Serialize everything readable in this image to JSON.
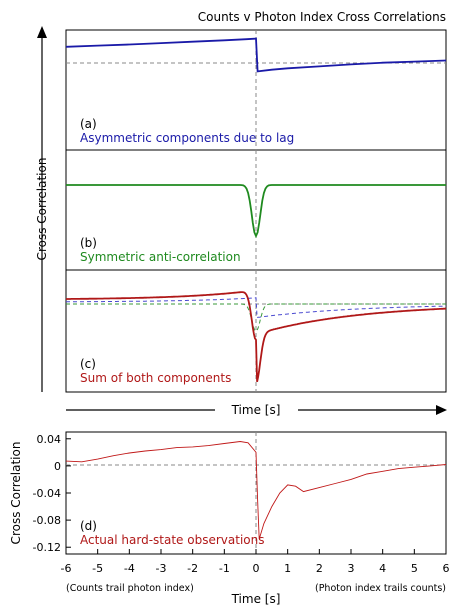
{
  "figure": {
    "title": "Counts v Photon Index Cross Correlations",
    "y_axis_label_top": "Cross Correlation",
    "time_arrow_label": "Time [s]"
  },
  "colors": {
    "blue": "#1a1aa8",
    "green": "#1f8a1f",
    "red": "#b01818",
    "axis": "#000000",
    "dash": "#888888"
  },
  "panels": [
    {
      "label": "(a)",
      "caption": "Asymmetric components due to lag",
      "color": "blue"
    },
    {
      "label": "(b)",
      "caption": "Symmetric anti-correlation",
      "color": "green"
    },
    {
      "label": "(c)",
      "caption": "Sum of both components",
      "color": "red"
    },
    {
      "label": "(d)",
      "caption": "Actual hard-state observations",
      "color": "red"
    }
  ],
  "bottom_axis": {
    "xlabel": "Time [s]",
    "ylabel": "Cross Correlation",
    "left_note": "(Counts trail photon index)",
    "right_note": "(Photon index trails counts)",
    "xticks": [
      -6,
      -5,
      -4,
      -3,
      -2,
      -1,
      0,
      1,
      2,
      3,
      4,
      5,
      6
    ],
    "yticks": [
      "0.04",
      "0",
      "-0.04",
      "-0.08",
      "-0.12"
    ]
  },
  "chart_data": [
    {
      "type": "line",
      "title": "(a) Asymmetric components due to lag",
      "x": [
        -6,
        -5,
        -4,
        -3,
        -2,
        -1,
        -0.3,
        0,
        0.05,
        0.5,
        1,
        2,
        3,
        4,
        5,
        6
      ],
      "series": [
        {
          "values": [
            0.58,
            0.62,
            0.66,
            0.71,
            0.76,
            0.81,
            0.85,
            0.87,
            -0.3,
            -0.24,
            -0.19,
            -0.12,
            -0.05,
            0.01,
            0.05,
            0.09
          ]
        }
      ]
    },
    {
      "type": "line",
      "title": "(b) Symmetric anti-correlation",
      "x": [
        -6,
        -1,
        -0.5,
        -0.3,
        -0.15,
        0,
        0.15,
        0.3,
        0.5,
        1,
        6
      ],
      "series": [
        {
          "values": [
            0,
            0,
            -0.01,
            -0.1,
            -0.5,
            -1,
            -0.5,
            -0.1,
            -0.01,
            0,
            0
          ]
        }
      ]
    },
    {
      "type": "line",
      "title": "(c) Sum of both components",
      "x": [
        -6,
        -4,
        -2,
        -1,
        -0.5,
        -0.2,
        0,
        0.2,
        0.5,
        1,
        2,
        3,
        4,
        5,
        6
      ],
      "series": [
        {
          "values": [
            0.05,
            0.1,
            0.2,
            0.25,
            0.2,
            -0.1,
            -1.25,
            -0.8,
            -0.6,
            -0.5,
            -0.4,
            -0.3,
            -0.2,
            -0.15,
            -0.1
          ]
        }
      ]
    },
    {
      "type": "line",
      "title": "(d) Actual hard-state observations",
      "xlabel": "Time [s]",
      "ylabel": "Cross Correlation",
      "xlim": [
        -6,
        6
      ],
      "ylim": [
        -0.13,
        0.05
      ],
      "x": [
        -6,
        -5.5,
        -5,
        -4.5,
        -4,
        -3.5,
        -3,
        -2.5,
        -2,
        -1.5,
        -1,
        -0.5,
        -0.25,
        0,
        0.05,
        0.1,
        0.25,
        0.5,
        0.75,
        1,
        1.25,
        1.5,
        2,
        2.5,
        3,
        3.5,
        4,
        4.5,
        5,
        5.5,
        6
      ],
      "series": [
        {
          "values": [
            0.007,
            0.006,
            0.01,
            0.015,
            0.019,
            0.022,
            0.024,
            0.027,
            0.028,
            0.03,
            0.033,
            0.036,
            0.034,
            0.02,
            -0.05,
            -0.108,
            -0.085,
            -0.06,
            -0.04,
            -0.028,
            -0.03,
            -0.038,
            -0.032,
            -0.026,
            -0.02,
            -0.012,
            -0.008,
            -0.004,
            -0.002,
            0.0,
            0.002
          ]
        }
      ]
    }
  ]
}
